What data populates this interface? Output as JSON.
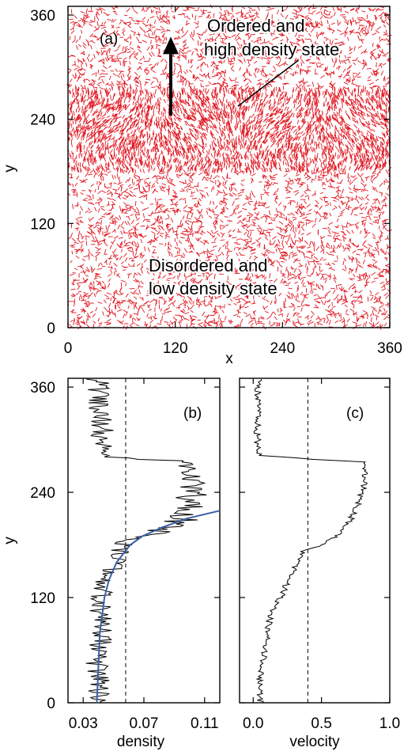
{
  "chart_data": [
    {
      "type": "scatter",
      "panel_label": "(a)",
      "xlabel": "x",
      "ylabel": "y",
      "xlim": [
        0,
        360
      ],
      "ylim": [
        0,
        370
      ],
      "xticks": [
        0,
        120,
        240,
        360
      ],
      "yticks": [
        0,
        120,
        240,
        360
      ],
      "grid": false,
      "colors": {
        "particles": "#e0141e",
        "frame": "#000000"
      },
      "annotations": [
        {
          "lines": [
            "Ordered and",
            "high density state"
          ]
        },
        {
          "lines": [
            "Disordered and",
            "low density state"
          ]
        }
      ],
      "arrow": {
        "from": [
          115,
          244
        ],
        "to": [
          115,
          335
        ]
      },
      "leader_line": {
        "from": [
          190,
          255
        ],
        "to": [
          258,
          308
        ]
      },
      "regions": [
        {
          "y_range": [
            180,
            275
          ],
          "state": "ordered",
          "particle_density": 0.1,
          "mean_angle_deg": 90
        },
        {
          "y_range": [
            0,
            180
          ],
          "state": "disordered",
          "particle_density": 0.04
        },
        {
          "y_range": [
            275,
            370
          ],
          "state": "disordered",
          "particle_density": 0.04
        }
      ]
    },
    {
      "type": "line",
      "panel_label": "(b)",
      "xlabel": "density",
      "ylabel": "y",
      "xlim": [
        0.02,
        0.12
      ],
      "ylim": [
        0,
        370
      ],
      "xticks": [
        0.03,
        0.07,
        0.11
      ],
      "xtick_labels": [
        "0.03",
        "0.07",
        "0.11"
      ],
      "yticks": [
        0,
        120,
        240,
        360
      ],
      "dashed_vline": 0.058,
      "colors": {
        "profile": "#000000",
        "fit": "#3a5fa8"
      },
      "series": [
        {
          "y": [
            0,
            20,
            40,
            60,
            80,
            100,
            120,
            140,
            160,
            180,
            190,
            200,
            220,
            240,
            260,
            275,
            280,
            300,
            320,
            340,
            360,
            370
          ],
          "value": [
            0.04,
            0.041,
            0.039,
            0.04,
            0.042,
            0.041,
            0.043,
            0.046,
            0.05,
            0.057,
            0.066,
            0.09,
            0.1,
            0.101,
            0.103,
            0.095,
            0.045,
            0.042,
            0.042,
            0.04,
            0.04,
            0.04
          ]
        },
        {
          "y": [
            0,
            40,
            80,
            120,
            140,
            160,
            180,
            190,
            200,
            210,
            219
          ],
          "value": [
            0.039,
            0.04,
            0.041,
            0.044,
            0.047,
            0.052,
            0.061,
            0.069,
            0.082,
            0.098,
            0.12
          ]
        }
      ]
    },
    {
      "type": "line",
      "panel_label": "(c)",
      "xlabel": "velocity",
      "ylabel": "",
      "xlim": [
        -0.1,
        1.0
      ],
      "ylim": [
        0,
        370
      ],
      "xticks": [
        0.0,
        0.5,
        1.0
      ],
      "xtick_labels": [
        "0.0",
        "0.5",
        "1.0"
      ],
      "dashed_vline": 0.4,
      "colors": {
        "profile": "#000000"
      },
      "series": [
        {
          "y": [
            0,
            20,
            40,
            60,
            80,
            100,
            120,
            140,
            160,
            175,
            180,
            190,
            200,
            220,
            240,
            260,
            275,
            278,
            282,
            300,
            320,
            340,
            360,
            370
          ],
          "value": [
            0.05,
            0.04,
            0.06,
            0.09,
            0.1,
            0.13,
            0.2,
            0.26,
            0.32,
            0.38,
            0.5,
            0.62,
            0.68,
            0.75,
            0.8,
            0.82,
            0.8,
            0.4,
            0.05,
            0.03,
            0.03,
            0.04,
            0.03,
            0.04
          ]
        }
      ]
    }
  ]
}
